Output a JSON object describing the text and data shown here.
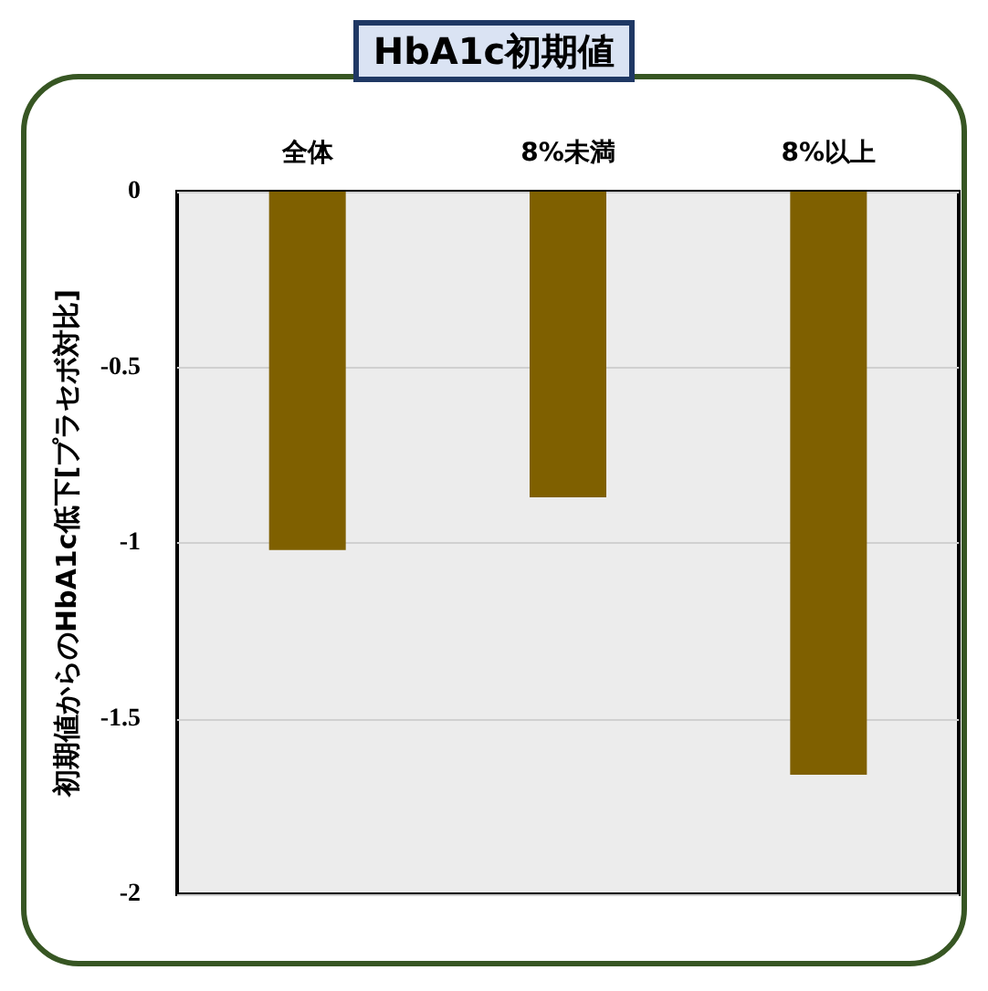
{
  "chart_data": {
    "type": "bar",
    "title": "HbA1c初期値",
    "ylabel": "初期値からのHbA1c低下[プラセボ対比]",
    "categories": [
      "全体",
      "8%未満",
      "8%以上"
    ],
    "values": [
      -1.02,
      -0.87,
      -1.66
    ],
    "color": "#7f6000",
    "ylim": [
      -2,
      0
    ],
    "yticks": [
      -2,
      -1.5,
      -1,
      -0.5,
      0
    ],
    "grid": "y"
  }
}
